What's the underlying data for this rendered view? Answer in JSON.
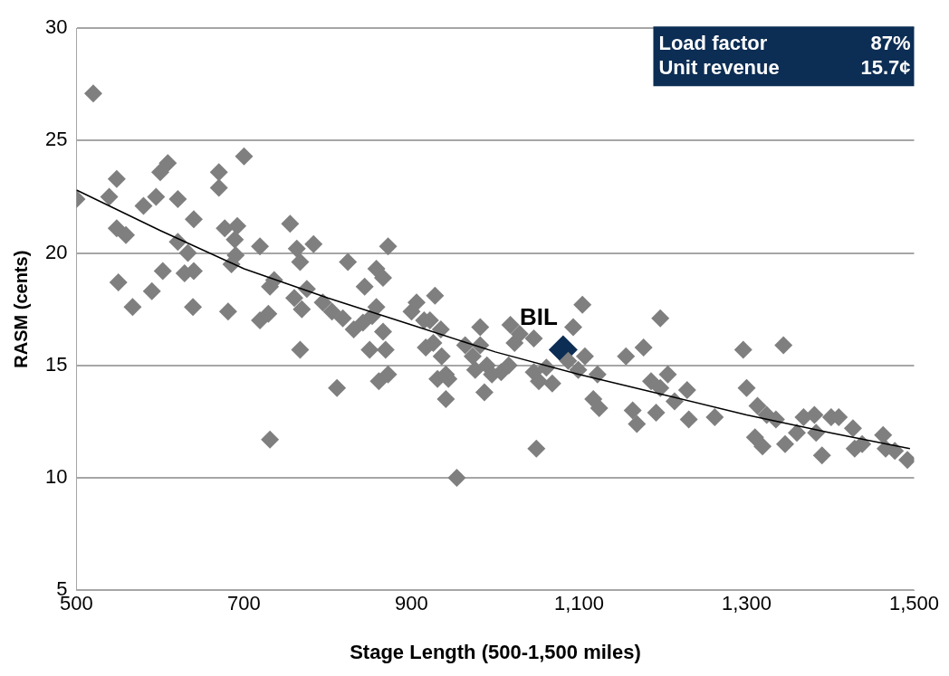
{
  "chart_data": {
    "type": "scatter",
    "xlabel": "Stage Length (500-1,500 miles)",
    "ylabel": "RASM (cents)",
    "xlim": [
      500,
      1500
    ],
    "xticks": [
      {
        "value": 500,
        "label": "500"
      },
      {
        "value": 700,
        "label": "700"
      },
      {
        "value": 900,
        "label": "900"
      },
      {
        "value": 1100,
        "label": "1,100"
      },
      {
        "value": 1300,
        "label": "1,300"
      },
      {
        "value": 1500,
        "label": "1,500"
      }
    ],
    "ylim": [
      5,
      30
    ],
    "yticks": [
      5,
      10,
      15,
      20,
      25,
      30
    ],
    "grid": "y",
    "marker": "diamond",
    "series": [
      {
        "color": "#7f7f7f",
        "x": [
          500,
          520,
          539,
          548,
          548,
          559,
          550,
          567,
          580,
          590,
          595,
          600,
          603,
          609,
          621,
          621,
          629,
          633,
          640,
          640,
          639,
          670,
          670,
          677,
          685,
          681,
          689,
          692,
          690,
          700,
          719,
          719,
          729,
          731,
          731,
          736,
          755,
          760,
          763,
          767,
          767,
          769,
          775,
          783,
          794,
          805,
          811,
          818,
          824,
          831,
          842,
          844,
          850,
          853,
          858,
          858,
          861,
          866,
          866,
          869,
          872,
          872,
          900,
          906,
          915,
          917,
          922,
          926,
          928,
          931,
          935,
          936,
          941,
          941,
          944,
          954,
          964,
          973,
          976,
          982,
          982,
          987,
          990,
          996,
          1007,
          1016,
          1018,
          1023,
          1029,
          1046,
          1046,
          1049,
          1052,
          1061,
          1068,
          1087,
          1093,
          1099,
          1104,
          1107,
          1117,
          1122,
          1124,
          1156,
          1164,
          1169,
          1177,
          1186,
          1192,
          1197,
          1197,
          1206,
          1214,
          1229,
          1231,
          1262,
          1296,
          1300,
          1310,
          1313,
          1319,
          1324,
          1335,
          1344,
          1346,
          1360,
          1368,
          1381,
          1383,
          1390,
          1401,
          1410,
          1427,
          1429,
          1438,
          1463,
          1466,
          1477,
          1492
        ],
        "values": [
          22.4,
          27.1,
          22.5,
          23.3,
          21.1,
          20.8,
          18.7,
          17.6,
          22.1,
          18.3,
          22.5,
          23.6,
          19.2,
          24.0,
          22.4,
          20.5,
          19.1,
          20.0,
          21.5,
          19.2,
          17.6,
          23.6,
          22.9,
          21.1,
          19.5,
          17.4,
          20.6,
          21.2,
          19.9,
          24.3,
          20.3,
          17.0,
          17.3,
          11.7,
          18.5,
          18.8,
          21.3,
          18.0,
          20.2,
          15.7,
          19.6,
          17.5,
          18.4,
          20.4,
          17.8,
          17.4,
          14.0,
          17.1,
          19.6,
          16.6,
          16.9,
          18.5,
          15.7,
          17.2,
          19.3,
          17.6,
          14.3,
          16.5,
          18.9,
          15.7,
          14.6,
          20.3,
          17.4,
          17.8,
          17.0,
          15.8,
          17.0,
          16.0,
          18.1,
          14.4,
          16.6,
          15.4,
          13.5,
          14.6,
          14.4,
          10.0,
          15.9,
          15.4,
          14.8,
          16.7,
          15.9,
          13.8,
          15.0,
          14.6,
          14.7,
          15.0,
          16.8,
          16.0,
          16.4,
          16.2,
          14.7,
          11.3,
          14.3,
          14.9,
          14.2,
          15.2,
          16.7,
          14.8,
          17.7,
          15.4,
          13.5,
          14.6,
          13.1,
          15.4,
          13.0,
          12.4,
          15.8,
          14.3,
          12.9,
          14.0,
          17.1,
          14.6,
          13.4,
          13.9,
          12.6,
          12.7,
          15.7,
          14.0,
          11.8,
          13.2,
          11.4,
          12.8,
          12.6,
          15.9,
          11.5,
          12.0,
          12.7,
          12.8,
          12.0,
          11.0,
          12.7,
          12.7,
          12.2,
          11.3,
          11.5,
          11.9,
          11.3,
          11.2,
          10.8
        ]
      },
      {
        "color": "#0c2d54",
        "x": [
          1081
        ],
        "values": [
          15.7
        ]
      },
      {
        "type": "line",
        "color": "#000000",
        "marker": "none",
        "x": [
          500,
          600,
          700,
          800,
          900,
          1000,
          1100,
          1200,
          1300,
          1400,
          1495
        ],
        "values": [
          22.8,
          21.0,
          19.3,
          18.0,
          16.8,
          15.6,
          14.6,
          13.7,
          12.8,
          12.0,
          11.3
        ]
      }
    ],
    "annotations": [
      {
        "text": "BIL",
        "x": 1081,
        "y": 15.7
      },
      "Load factor",
      "87%",
      "Unit revenue",
      "15.7¢"
    ]
  }
}
